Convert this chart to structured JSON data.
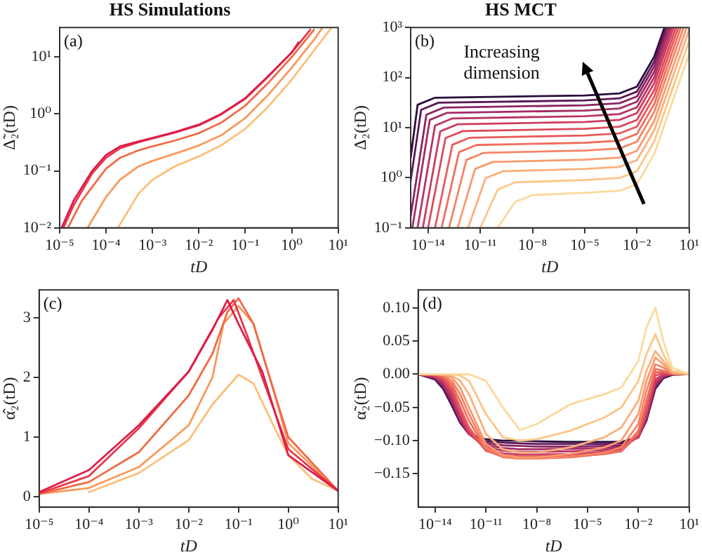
{
  "chart_data": [
    {
      "type": "line",
      "title": "HS Simulations",
      "xlabel": "tD",
      "ylabel": "Δ̃₂(tD)",
      "log": "xy",
      "annotations": [
        "(a)"
      ],
      "xlim": [
        1e-05,
        10
      ],
      "xticks": [
        {
          "value": 1e-05,
          "label": "10⁻⁵"
        },
        {
          "value": 0.0001,
          "label": "10⁻⁴"
        },
        {
          "value": 0.001,
          "label": "10⁻³"
        },
        {
          "value": 0.01,
          "label": "10⁻²"
        },
        {
          "value": 0.1,
          "label": "10⁻¹"
        },
        {
          "value": 1,
          "label": "10⁰"
        },
        {
          "value": 10,
          "label": "10¹"
        }
      ],
      "ylim": [
        0.01,
        33
      ],
      "yticks": [
        {
          "value": 0.01,
          "label": "10⁻²"
        },
        {
          "value": 0.1,
          "label": "10⁻¹"
        },
        {
          "value": 1,
          "label": "10⁰"
        },
        {
          "value": 10,
          "label": "10¹"
        }
      ],
      "series": [
        {
          "color": "#dc1e4a",
          "x": [
            1.1e-05,
            2e-05,
            5e-05,
            0.0001,
            0.0002,
            0.0005,
            0.001,
            0.003,
            0.01,
            0.03,
            0.1,
            0.3,
            1,
            1.4
          ],
          "values": [
            0.01,
            0.03,
            0.1,
            0.19,
            0.27,
            0.33,
            0.38,
            0.48,
            0.65,
            1.0,
            1.9,
            4.5,
            12,
            18
          ]
        },
        {
          "color": "#e8364c",
          "x": [
            1.2e-05,
            2e-05,
            5e-05,
            0.0001,
            0.0002,
            0.0005,
            0.001,
            0.003,
            0.01,
            0.03,
            0.1,
            0.3,
            1,
            2.5
          ],
          "values": [
            0.01,
            0.025,
            0.09,
            0.17,
            0.25,
            0.32,
            0.37,
            0.47,
            0.63,
            0.98,
            1.85,
            4.4,
            12,
            30
          ]
        },
        {
          "color": "#f06a45",
          "x": [
            1.5e-05,
            3e-05,
            0.0001,
            0.0002,
            0.0005,
            0.001,
            0.003,
            0.01,
            0.03,
            0.1,
            0.3,
            1,
            3
          ],
          "values": [
            0.01,
            0.03,
            0.11,
            0.17,
            0.23,
            0.27,
            0.34,
            0.46,
            0.7,
            1.4,
            3.4,
            10,
            30
          ]
        },
        {
          "color": "#f89a5a",
          "x": [
            4e-05,
            0.0001,
            0.0002,
            0.0005,
            0.001,
            0.003,
            0.01,
            0.03,
            0.1,
            0.3,
            1,
            3,
            4.5
          ],
          "values": [
            0.01,
            0.035,
            0.07,
            0.12,
            0.15,
            0.2,
            0.28,
            0.42,
            0.85,
            2.1,
            6.5,
            20,
            32
          ]
        },
        {
          "color": "#fbc07a",
          "x": [
            0.00018,
            0.0003,
            0.0005,
            0.001,
            0.003,
            0.01,
            0.03,
            0.1,
            0.3,
            1,
            3,
            7
          ],
          "values": [
            0.01,
            0.02,
            0.04,
            0.07,
            0.12,
            0.18,
            0.28,
            0.55,
            1.3,
            4,
            13,
            32
          ]
        }
      ]
    },
    {
      "type": "line",
      "title": "HS MCT",
      "xlabel": "tD",
      "ylabel": "Δ̃₂(tD)",
      "log": "xy",
      "annotations": [
        "(b)",
        "Increasing dimension"
      ],
      "xlim": [
        1e-15,
        10
      ],
      "xticks": [
        {
          "value": 1e-14,
          "label": "10⁻¹⁴"
        },
        {
          "value": 1e-11,
          "label": "10⁻¹¹"
        },
        {
          "value": 1e-08,
          "label": "10⁻⁸"
        },
        {
          "value": 1e-05,
          "label": "10⁻⁵"
        },
        {
          "value": 0.01,
          "label": "10⁻²"
        },
        {
          "value": 10,
          "label": "10¹"
        }
      ],
      "ylim": [
        0.1,
        1000
      ],
      "yticks": [
        {
          "value": 0.1,
          "label": "10⁻¹"
        },
        {
          "value": 1,
          "label": "10⁰"
        },
        {
          "value": 10,
          "label": "10¹"
        },
        {
          "value": 100,
          "label": "10²"
        },
        {
          "value": 1000,
          "label": "10³"
        }
      ],
      "series": [
        {
          "color": "#fcd99a",
          "x": [
            1e-10,
            1e-09,
            1e-08,
            1e-05,
            0.001,
            0.01,
            0.1,
            1,
            10
          ],
          "values": [
            0.1,
            0.33,
            0.45,
            0.5,
            0.55,
            0.75,
            3,
            30,
            300
          ]
        },
        {
          "color": "#fcc588",
          "x": [
            1e-11,
            1e-10,
            1e-09,
            1e-05,
            0.001,
            0.01,
            0.1,
            1,
            10
          ],
          "values": [
            0.1,
            0.58,
            0.81,
            0.9,
            0.99,
            1.35,
            5.4,
            54,
            540
          ]
        },
        {
          "color": "#fbb07b",
          "x": [
            2e-12,
            2e-11,
            2e-10,
            1e-05,
            0.001,
            0.01,
            0.1,
            1,
            10
          ],
          "values": [
            0.1,
            0.98,
            1.35,
            1.5,
            1.65,
            2.25,
            9,
            90,
            900
          ]
        },
        {
          "color": "#f89a6e",
          "x": [
            5e-13,
            5e-12,
            5e-11,
            1e-05,
            0.001,
            0.01,
            0.1,
            1,
            7.2
          ],
          "values": [
            0.1,
            1.5,
            2.07,
            2.3,
            2.53,
            3.45,
            13.8,
            138,
            1000
          ]
        },
        {
          "color": "#f58463",
          "x": [
            1.6e-13,
            1.6e-12,
            1.6e-11,
            1e-05,
            0.001,
            0.01,
            0.1,
            1,
            4.8
          ],
          "values": [
            0.1,
            2.28,
            3.15,
            3.5,
            3.85,
            5.25,
            21,
            210,
            1000
          ]
        },
        {
          "color": "#f06f5d",
          "x": [
            6e-14,
            6e-13,
            6e-12,
            1e-05,
            0.001,
            0.01,
            0.1,
            1,
            3.3
          ],
          "values": [
            0.1,
            3.25,
            4.5,
            5,
            5.5,
            7.5,
            30,
            300,
            1000
          ]
        },
        {
          "color": "#e85a5a",
          "x": [
            2.5e-14,
            2.5e-13,
            2.5e-12,
            1e-05,
            0.001,
            0.01,
            0.1,
            1,
            2.4
          ],
          "values": [
            0.1,
            4.55,
            6.3,
            7,
            7.7,
            10.5,
            42,
            420,
            1000
          ]
        },
        {
          "color": "#dc4a5c",
          "x": [
            1e-14,
            1e-13,
            1e-12,
            1e-05,
            0.001,
            0.01,
            0.1,
            1.75
          ],
          "values": [
            0.1,
            6.2,
            8.55,
            9.5,
            10.45,
            14.25,
            57,
            1000
          ]
        },
        {
          "color": "#cc3d60",
          "x": [
            5e-15,
            5e-14,
            5e-13,
            1e-05,
            0.001,
            0.01,
            0.1,
            1.28
          ],
          "values": [
            0.1,
            8.45,
            11.7,
            13,
            14.3,
            19.5,
            78,
            1000
          ]
        },
        {
          "color": "#b83463",
          "x": [
            2.5e-15,
            2.5e-14,
            2.5e-13,
            1e-05,
            0.001,
            0.01,
            0.1,
            0.98
          ],
          "values": [
            0.1,
            11,
            15.3,
            17,
            18.7,
            25.5,
            102,
            1000
          ]
        },
        {
          "color": "#a22c64",
          "x": [
            1.25e-15,
            1.25e-14,
            1.25e-13,
            1e-05,
            0.001,
            0.01,
            0.1,
            0.76
          ],
          "values": [
            0.1,
            14.3,
            19.8,
            22,
            24.2,
            33,
            132,
            1000
          ]
        },
        {
          "color": "#8a2462",
          "x": [
            1e-15,
            8e-15,
            8e-14,
            1e-05,
            0.001,
            0.01,
            0.1,
            0.6
          ],
          "values": [
            0.17,
            18.2,
            25.2,
            28,
            30.8,
            42,
            168,
            1000
          ]
        },
        {
          "color": "#5c1758",
          "x": [
            1e-15,
            4e-15,
            4e-14,
            1e-05,
            0.001,
            0.01,
            0.1,
            0.48
          ],
          "values": [
            0.88,
            22.75,
            31.5,
            35,
            38.5,
            52.5,
            210,
            1000
          ]
        },
        {
          "color": "#2a0c3d",
          "x": [
            1e-15,
            2.5e-15,
            2.5e-14,
            1e-05,
            0.001,
            0.01,
            0.1,
            0.38
          ],
          "values": [
            2.5,
            28.6,
            39.6,
            44,
            48.4,
            66,
            264,
            1000
          ]
        }
      ]
    },
    {
      "type": "line",
      "xlabel": "tD",
      "ylabel": "α̂₂(tD)",
      "log": "x",
      "annotations": [
        "(c)"
      ],
      "xlim": [
        1e-05,
        10
      ],
      "xticks": [
        {
          "value": 1e-05,
          "label": "10⁻⁵"
        },
        {
          "value": 0.0001,
          "label": "10⁻⁴"
        },
        {
          "value": 0.001,
          "label": "10⁻³"
        },
        {
          "value": 0.01,
          "label": "10⁻²"
        },
        {
          "value": 0.1,
          "label": "10⁻¹"
        },
        {
          "value": 1,
          "label": "10⁰"
        },
        {
          "value": 10,
          "label": "10¹"
        }
      ],
      "ylim": [
        -0.17,
        3.47
      ],
      "yticks": [
        0,
        1,
        2,
        3
      ],
      "series": [
        {
          "color": "#dc1e4a",
          "x": [
            1e-05,
            0.0001,
            0.001,
            0.01,
            0.03,
            0.06,
            0.1,
            0.3,
            1,
            10
          ],
          "values": [
            0.08,
            0.45,
            1.2,
            2.1,
            2.8,
            3.3,
            2.9,
            2.1,
            0.7,
            0.1
          ]
        },
        {
          "color": "#e8364c",
          "x": [
            1e-05,
            0.0001,
            0.001,
            0.01,
            0.04,
            0.08,
            0.15,
            0.3,
            1,
            10
          ],
          "values": [
            0.06,
            0.35,
            1.15,
            2.1,
            3.0,
            3.3,
            2.7,
            2.0,
            0.8,
            0.1
          ]
        },
        {
          "color": "#f06a45",
          "x": [
            1e-05,
            0.0001,
            0.001,
            0.01,
            0.03,
            0.06,
            0.1,
            0.2,
            0.5,
            1,
            10
          ],
          "values": [
            0.05,
            0.25,
            0.75,
            1.7,
            2.4,
            3.1,
            3.33,
            2.9,
            1.8,
            1.0,
            0.1
          ]
        },
        {
          "color": "#f89a5a",
          "x": [
            1e-05,
            0.0001,
            0.001,
            0.01,
            0.03,
            0.05,
            0.1,
            0.2,
            0.5,
            1,
            10
          ],
          "values": [
            0.05,
            0.15,
            0.5,
            1.2,
            2.0,
            2.9,
            3.2,
            2.9,
            1.8,
            0.9,
            0.1
          ]
        },
        {
          "color": "#fbc07a",
          "x": [
            0.0001,
            0.001,
            0.01,
            0.03,
            0.1,
            0.2,
            0.5,
            1,
            3,
            10
          ],
          "values": [
            0.08,
            0.4,
            0.95,
            1.55,
            2.05,
            1.9,
            1.2,
            0.7,
            0.3,
            0.1
          ]
        }
      ]
    },
    {
      "type": "line",
      "xlabel": "tD",
      "ylabel": "α̃₂(tD)",
      "log": "x",
      "annotations": [
        "(d)"
      ],
      "xlim": [
        1e-15,
        10
      ],
      "xticks": [
        {
          "value": 1e-14,
          "label": "10⁻¹⁴"
        },
        {
          "value": 1e-11,
          "label": "10⁻¹¹"
        },
        {
          "value": 1e-08,
          "label": "10⁻⁸"
        },
        {
          "value": 1e-05,
          "label": "10⁻⁵"
        },
        {
          "value": 0.01,
          "label": "10⁻²"
        },
        {
          "value": 10,
          "label": "10¹"
        }
      ],
      "ylim": [
        -0.2,
        0.127
      ],
      "yticks": [
        {
          "value": -0.15,
          "label": "−0.15"
        },
        {
          "value": -0.1,
          "label": "−0.10"
        },
        {
          "value": -0.05,
          "label": "−0.05"
        },
        {
          "value": 0,
          "label": "0.00"
        },
        {
          "value": 0.05,
          "label": "0.05"
        },
        {
          "value": 0.1,
          "label": "0.10"
        }
      ],
      "x": [
        1e-15,
        1e-14,
        3e-14,
        1e-13,
        3e-13,
        1e-12,
        1e-11,
        1e-10,
        1e-09,
        1e-08,
        1e-06,
        0.0001,
        0.001,
        0.01,
        0.03,
        0.1,
        0.3,
        1,
        10
      ],
      "series": [
        {
          "color": "#fcd99a",
          "values": [
            0,
            0,
            0,
            0,
            0,
            0,
            -0.01,
            -0.05,
            -0.084,
            -0.075,
            -0.045,
            -0.03,
            -0.02,
            0.02,
            0.07,
            0.1,
            0.05,
            0.01,
            0
          ]
        },
        {
          "color": "#fcc588",
          "values": [
            0,
            0,
            0,
            0,
            -0.002,
            -0.01,
            -0.06,
            -0.095,
            -0.1,
            -0.098,
            -0.085,
            -0.065,
            -0.05,
            -0.01,
            0.03,
            0.06,
            0.03,
            0.005,
            0
          ]
        },
        {
          "color": "#fbb07b",
          "values": [
            0,
            0,
            0,
            -0.002,
            -0.01,
            -0.03,
            -0.09,
            -0.113,
            -0.118,
            -0.118,
            -0.11,
            -0.095,
            -0.08,
            -0.04,
            0.005,
            0.035,
            0.02,
            0.003,
            0
          ]
        },
        {
          "color": "#f89a6e",
          "values": [
            0,
            0,
            -0.001,
            -0.005,
            -0.02,
            -0.05,
            -0.105,
            -0.122,
            -0.125,
            -0.125,
            -0.12,
            -0.11,
            -0.1,
            -0.06,
            -0.01,
            0.025,
            0.015,
            0.002,
            0
          ]
        },
        {
          "color": "#f58463",
          "values": [
            0,
            0,
            -0.002,
            -0.01,
            -0.03,
            -0.06,
            -0.11,
            -0.124,
            -0.127,
            -0.127,
            -0.124,
            -0.118,
            -0.11,
            -0.075,
            -0.025,
            0.015,
            0.01,
            0.001,
            0
          ]
        },
        {
          "color": "#f06f5d",
          "values": [
            0,
            -0.001,
            -0.003,
            -0.015,
            -0.04,
            -0.07,
            -0.113,
            -0.125,
            -0.127,
            -0.127,
            -0.125,
            -0.12,
            -0.115,
            -0.085,
            -0.04,
            0.008,
            0.005,
            0.001,
            0
          ]
        },
        {
          "color": "#e85a5a",
          "values": [
            0,
            -0.001,
            -0.005,
            -0.02,
            -0.05,
            -0.08,
            -0.115,
            -0.124,
            -0.126,
            -0.126,
            -0.124,
            -0.12,
            -0.116,
            -0.09,
            -0.05,
            0.003,
            0.003,
            0,
            0
          ]
        },
        {
          "color": "#dc4a5c",
          "values": [
            0,
            -0.002,
            -0.008,
            -0.025,
            -0.055,
            -0.085,
            -0.115,
            -0.122,
            -0.124,
            -0.124,
            -0.122,
            -0.119,
            -0.115,
            -0.092,
            -0.055,
            -0.002,
            0.002,
            0,
            0
          ]
        },
        {
          "color": "#cc3d60",
          "values": [
            0,
            -0.003,
            -0.01,
            -0.03,
            -0.06,
            -0.088,
            -0.113,
            -0.119,
            -0.121,
            -0.121,
            -0.12,
            -0.117,
            -0.113,
            -0.093,
            -0.06,
            -0.008,
            0,
            0,
            0
          ]
        },
        {
          "color": "#b83463",
          "values": [
            0,
            -0.004,
            -0.012,
            -0.035,
            -0.065,
            -0.09,
            -0.11,
            -0.115,
            -0.117,
            -0.117,
            -0.116,
            -0.114,
            -0.111,
            -0.094,
            -0.062,
            -0.012,
            -0.002,
            0,
            0
          ]
        },
        {
          "color": "#a22c64",
          "values": [
            0,
            -0.005,
            -0.015,
            -0.04,
            -0.068,
            -0.09,
            -0.107,
            -0.111,
            -0.113,
            -0.113,
            -0.112,
            -0.111,
            -0.109,
            -0.095,
            -0.065,
            -0.015,
            -0.003,
            0,
            0
          ]
        },
        {
          "color": "#8a2462",
          "values": [
            0,
            -0.006,
            -0.018,
            -0.043,
            -0.07,
            -0.09,
            -0.104,
            -0.107,
            -0.108,
            -0.109,
            -0.109,
            -0.108,
            -0.107,
            -0.095,
            -0.067,
            -0.018,
            -0.004,
            0,
            0
          ]
        },
        {
          "color": "#5c1758",
          "values": [
            0,
            -0.007,
            -0.02,
            -0.046,
            -0.072,
            -0.09,
            -0.101,
            -0.103,
            -0.104,
            -0.105,
            -0.105,
            -0.105,
            -0.104,
            -0.095,
            -0.068,
            -0.02,
            -0.005,
            0,
            0
          ]
        },
        {
          "color": "#2a0c3d",
          "values": [
            0,
            -0.008,
            -0.022,
            -0.048,
            -0.073,
            -0.09,
            -0.098,
            -0.1,
            -0.1,
            -0.101,
            -0.102,
            -0.102,
            -0.102,
            -0.095,
            -0.07,
            -0.022,
            -0.006,
            -0.001,
            0
          ]
        }
      ]
    }
  ]
}
